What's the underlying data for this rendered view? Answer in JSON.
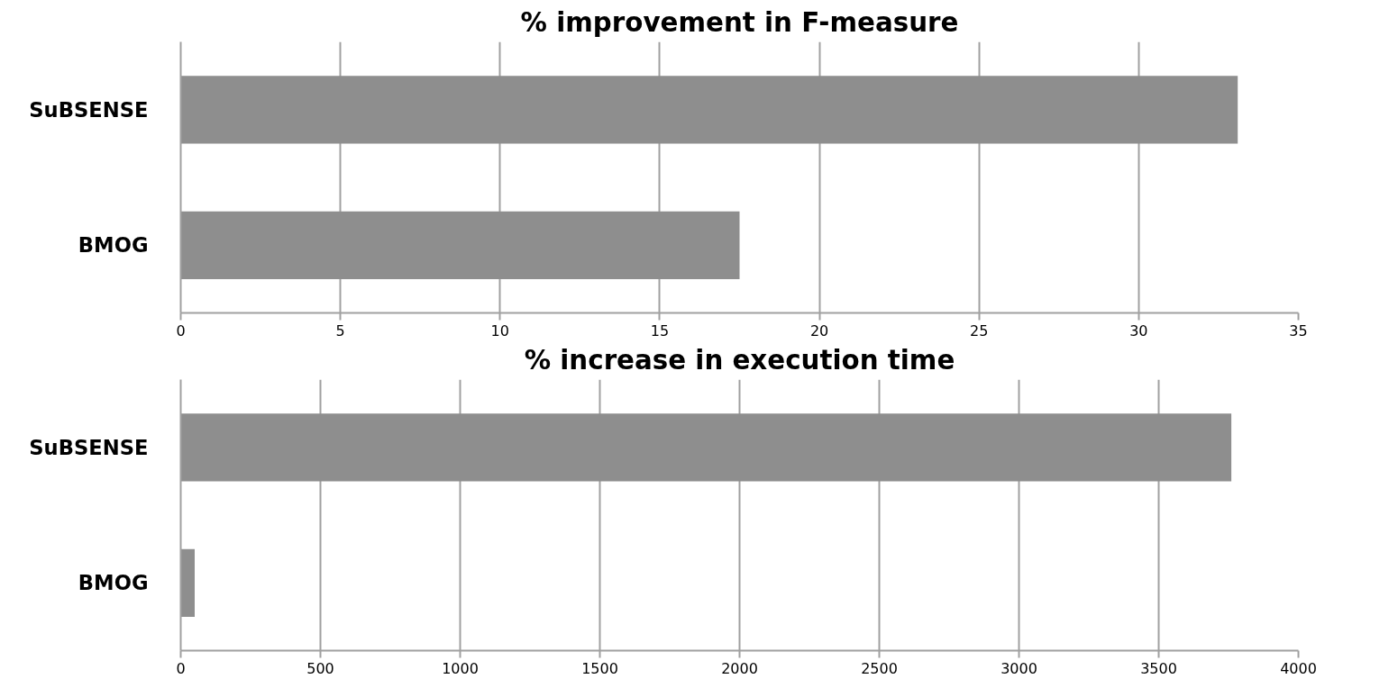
{
  "chart_data": [
    {
      "type": "bar",
      "orientation": "horizontal",
      "title": "% improvement in F-measure",
      "categories": [
        "SuBSENSE",
        "BMOG"
      ],
      "values": [
        33.1,
        17.5
      ],
      "color": "#8e8e8e",
      "xlim": [
        0,
        35
      ],
      "xticks": [
        0,
        5,
        10,
        15,
        20,
        25,
        30,
        35
      ],
      "grid": "x"
    },
    {
      "type": "bar",
      "orientation": "horizontal",
      "title": "% increase in execution time",
      "categories": [
        "SuBSENSE",
        "BMOG"
      ],
      "values": [
        3760,
        50
      ],
      "color": "#8e8e8e",
      "xlim": [
        0,
        4000
      ],
      "xticks": [
        0,
        500,
        1000,
        1500,
        2000,
        2500,
        3000,
        3500,
        4000
      ],
      "grid": "x"
    }
  ]
}
